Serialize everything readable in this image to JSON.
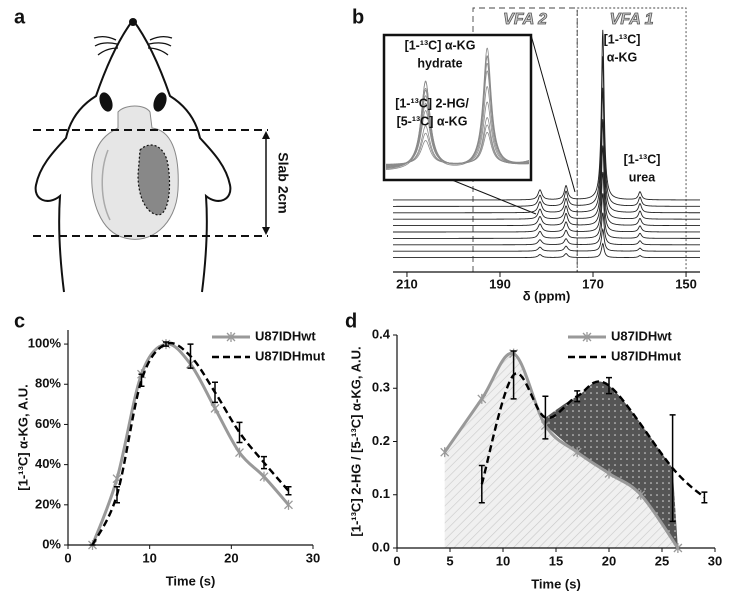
{
  "diagram": {
    "panel": "a",
    "slab_label": "Slab 2cm"
  },
  "chart_data": [
    {
      "type": "spectrum",
      "panel": "b",
      "xlabel": "δ (ppm)",
      "xlim": [
        213,
        147
      ],
      "xticks": [
        210,
        190,
        170,
        150
      ],
      "regions": [
        {
          "label": "VFA 2",
          "range": [
            195.8,
            173.4
          ]
        },
        {
          "label": "VFA 1",
          "range": [
            173.4,
            150
          ]
        }
      ],
      "peaks": [
        {
          "label_lines": [
            "[1-¹³C]",
            "α-KG"
          ],
          "ppm": 167.9,
          "width": 0.35
        },
        {
          "label_lines": [
            "[1-¹³C] α-KG",
            "hydrate"
          ],
          "ppm": 175.8,
          "width": 0.45
        },
        {
          "label_lines": [
            "[1-¹³C] 2-HG/",
            "[5-¹³C] α-KG"
          ],
          "ppm": 181.4,
          "width": 0.5
        },
        {
          "label_lines": [
            "[1-¹³C]",
            "urea"
          ],
          "ppm": 159.9,
          "width": 0.4
        }
      ],
      "traces": [
        [
          170,
          14,
          10,
          8
        ],
        [
          150,
          15,
          11,
          9
        ],
        [
          125,
          14,
          11,
          9
        ],
        [
          100,
          13,
          10,
          8
        ],
        [
          80,
          12,
          9,
          7
        ],
        [
          60,
          10,
          8,
          6
        ],
        [
          45,
          8,
          7,
          5
        ],
        [
          32,
          6,
          5,
          4
        ],
        [
          22,
          5,
          4,
          3
        ],
        [
          14,
          4,
          3,
          2
        ]
      ],
      "inset_xlim": [
        185,
        172
      ]
    },
    {
      "type": "line",
      "panel": "c",
      "xlabel": "Time (s)",
      "ylabel": "[1-¹³C] α-KG, A.U.",
      "xlim": [
        0,
        30
      ],
      "xticks": [
        0,
        10,
        20,
        30
      ],
      "ylim": [
        0,
        107
      ],
      "yticks": [
        {
          "value": 0,
          "label": "0%"
        },
        {
          "value": 20,
          "label": "20%"
        },
        {
          "value": 40,
          "label": "40%"
        },
        {
          "value": 60,
          "label": "60%"
        },
        {
          "value": 80,
          "label": "80%"
        },
        {
          "value": 100,
          "label": "100%"
        }
      ],
      "legend": "upper right",
      "series": [
        {
          "name": "U87IDHwt",
          "color": "#999999",
          "marker": "x",
          "x": [
            3,
            6,
            9,
            12,
            15,
            18,
            21,
            24,
            27
          ],
          "values": [
            0,
            33,
            85,
            100,
            90,
            68,
            46,
            34,
            20
          ]
        },
        {
          "name": "U87IDHmut",
          "color": "#000000",
          "dashed": true,
          "x": [
            3,
            6,
            9,
            12,
            15,
            18,
            21,
            24,
            27
          ],
          "values": [
            0,
            25,
            82,
            100,
            94,
            76,
            56,
            41,
            27
          ],
          "errors": [
            0,
            4,
            3,
            1,
            6,
            5,
            5,
            3,
            2
          ]
        }
      ]
    },
    {
      "type": "line",
      "panel": "d",
      "xlabel": "Time (s)",
      "ylabel": "[1-¹³C] 2-HG / [5-¹³C] α-KG, A.U.",
      "xlim": [
        0,
        30
      ],
      "xticks": [
        0,
        5,
        10,
        15,
        20,
        25,
        30
      ],
      "ylim": [
        0,
        0.4
      ],
      "yticks": [
        {
          "value": 0,
          "label": "0.0"
        },
        0.1,
        0.2,
        0.3,
        0.4
      ],
      "legend": "upper right",
      "area": true,
      "series": [
        {
          "name": "U87IDHwt",
          "color": "#999999",
          "marker": "x",
          "x": [
            4.5,
            8,
            11,
            14,
            17,
            20,
            23,
            26.5
          ],
          "values": [
            0.18,
            0.28,
            0.365,
            0.23,
            0.18,
            0.14,
            0.1,
            0
          ]
        },
        {
          "name": "U87IDHmut",
          "color": "#000000",
          "dashed": true,
          "x": [
            8,
            11,
            14,
            17,
            20,
            26,
            29
          ],
          "values": [
            0.12,
            0.325,
            0.245,
            0.285,
            0.305,
            0.15,
            0.095
          ],
          "errors": [
            0.035,
            0.045,
            0.04,
            0.01,
            0.015,
            0.1,
            0.01
          ]
        }
      ]
    }
  ]
}
